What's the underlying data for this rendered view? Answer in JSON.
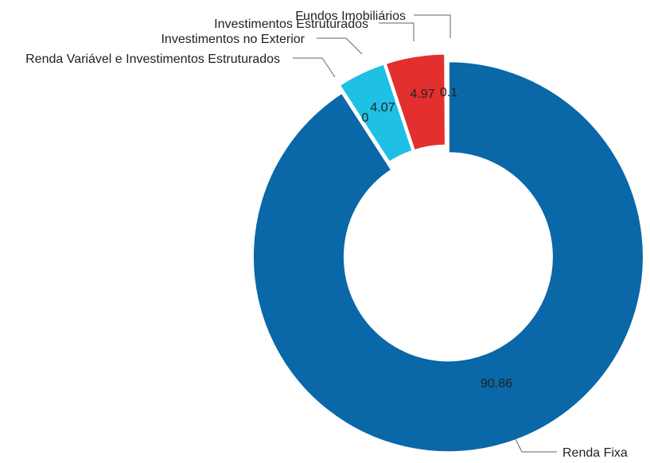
{
  "chart_data": {
    "type": "pie",
    "donut": true,
    "categories": [
      "Renda Fixa",
      "Renda Variável e Investimentos Estruturados",
      "Investimentos no Exterior",
      "Investimentos Estruturados",
      "Fundos Imobiliários"
    ],
    "values": [
      90.86,
      0,
      4.07,
      4.97,
      0.1
    ],
    "value_labels": [
      "90.86",
      "0",
      "4.07",
      "4.97",
      "0.1"
    ],
    "colors": [
      "#0a67a8",
      "#0a67a8",
      "#1ec0e4",
      "#e3302e",
      "#0a67a8"
    ],
    "title": "",
    "legend": "none"
  }
}
